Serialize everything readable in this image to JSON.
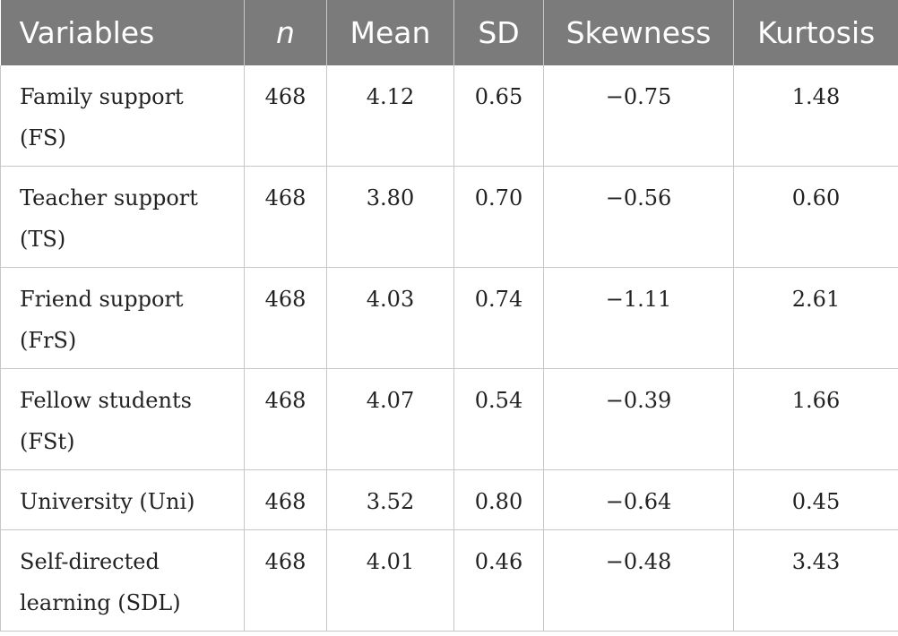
{
  "table": {
    "headers": [
      "Variables",
      "n",
      "Mean",
      "SD",
      "Skewness",
      "Kurtosis"
    ],
    "rows": [
      {
        "variable": [
          "Family support",
          "(FS)"
        ],
        "n": "468",
        "mean": "4.12",
        "sd": "0.65",
        "skewness": "−0.75",
        "kurtosis": "1.48"
      },
      {
        "variable": [
          "Teacher support",
          "(TS)"
        ],
        "n": "468",
        "mean": "3.80",
        "sd": "0.70",
        "skewness": "−0.56",
        "kurtosis": "0.60"
      },
      {
        "variable": [
          "Friend support",
          "(FrS)"
        ],
        "n": "468",
        "mean": "4.03",
        "sd": "0.74",
        "skewness": "−1.11",
        "kurtosis": "2.61"
      },
      {
        "variable": [
          "Fellow students",
          "(FSt)"
        ],
        "n": "468",
        "mean": "4.07",
        "sd": "0.54",
        "skewness": "−0.39",
        "kurtosis": "1.66"
      },
      {
        "variable": [
          "University (Uni)"
        ],
        "n": "468",
        "mean": "3.52",
        "sd": "0.80",
        "skewness": "−0.64",
        "kurtosis": "0.45"
      },
      {
        "variable": [
          "Self-directed",
          "learning (SDL)"
        ],
        "n": "468",
        "mean": "4.01",
        "sd": "0.46",
        "skewness": "−0.48",
        "kurtosis": "3.43"
      }
    ]
  }
}
